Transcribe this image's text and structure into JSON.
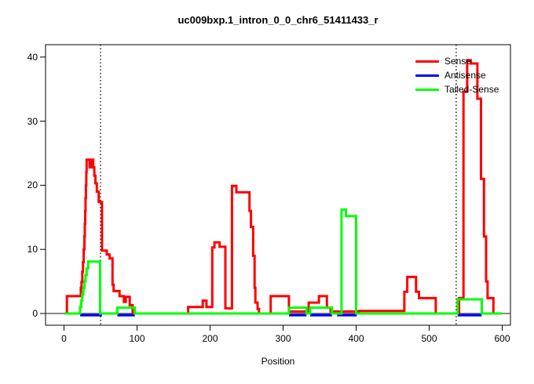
{
  "chart_data": {
    "type": "line",
    "title": "uc009bxp.1_intron_0_0_chr6_51411433_r",
    "xlabel": "Position",
    "ylabel": "",
    "xlim": [
      0,
      600
    ],
    "ylim": [
      0,
      40
    ],
    "x_ticks": [
      0,
      100,
      200,
      300,
      400,
      500,
      600
    ],
    "y_ticks": [
      0,
      10,
      20,
      30,
      40
    ],
    "grid": false,
    "step_interpolation": true,
    "dotted_vlines": [
      50,
      537
    ],
    "axis_color": "#000000",
    "zero_line_color": "#444444",
    "legend_position": "top-right",
    "legend": [
      {
        "label": "Sense",
        "color": "#ff0000"
      },
      {
        "label": "Antisense",
        "color": "#0000ff"
      },
      {
        "label": "Tailed-Sense",
        "color": "#00ff00"
      }
    ],
    "series": [
      {
        "name": "Sense",
        "color": "#ff0000",
        "points": [
          [
            0,
            0
          ],
          [
            4,
            2.7
          ],
          [
            23,
            4
          ],
          [
            24,
            4.9
          ],
          [
            25,
            6.5
          ],
          [
            26,
            8
          ],
          [
            27,
            10
          ],
          [
            28,
            12
          ],
          [
            28.5,
            14
          ],
          [
            29,
            16
          ],
          [
            29.5,
            18
          ],
          [
            30,
            20
          ],
          [
            30.5,
            22
          ],
          [
            31,
            24
          ],
          [
            35,
            22.8
          ],
          [
            38,
            24
          ],
          [
            40,
            22.8
          ],
          [
            41.5,
            21.5
          ],
          [
            43,
            20.3
          ],
          [
            45,
            19
          ],
          [
            47.5,
            17.4
          ],
          [
            52,
            9.8
          ],
          [
            58.5,
            9.2
          ],
          [
            62.5,
            8.6
          ],
          [
            66.5,
            4.5
          ],
          [
            68,
            3.5
          ],
          [
            76,
            2.7
          ],
          [
            82,
            1.8
          ],
          [
            84.5,
            2.6
          ],
          [
            90,
            1.3
          ],
          [
            94,
            0
          ],
          [
            170,
            1
          ],
          [
            190,
            2
          ],
          [
            195,
            1
          ],
          [
            203,
            10.3
          ],
          [
            206,
            11.1
          ],
          [
            213,
            10.4
          ],
          [
            221,
            0.8
          ],
          [
            230,
            19.9
          ],
          [
            236,
            18.9
          ],
          [
            254,
            16
          ],
          [
            256,
            13.5
          ],
          [
            259,
            9
          ],
          [
            261,
            4
          ],
          [
            262,
            1.7
          ],
          [
            265,
            0.7
          ],
          [
            267,
            0
          ],
          [
            283,
            2.7
          ],
          [
            308,
            0.3
          ],
          [
            335,
            1.7
          ],
          [
            349,
            2.7
          ],
          [
            360,
            0.9
          ],
          [
            365,
            0.3
          ],
          [
            404,
            0.4
          ],
          [
            466,
            3.4
          ],
          [
            470,
            5.7
          ],
          [
            482,
            3.4
          ],
          [
            486,
            2.4
          ],
          [
            509,
            0
          ],
          [
            541,
            2.4
          ],
          [
            547,
            34.6
          ],
          [
            552,
            39.5
          ],
          [
            557,
            39
          ],
          [
            566,
            33.5
          ],
          [
            571,
            21
          ],
          [
            575,
            12
          ],
          [
            578,
            5
          ],
          [
            580,
            2.4
          ],
          [
            588,
            0
          ],
          [
            600,
            0
          ]
        ]
      },
      {
        "name": "Antisense",
        "color": "#0000ff",
        "points": [
          [
            0,
            0
          ],
          [
            600,
            0
          ]
        ],
        "visible_segments": [
          [
            22,
            52
          ],
          [
            73,
            97
          ],
          [
            308,
            332
          ],
          [
            337,
            367
          ],
          [
            374,
            401
          ],
          [
            539,
            572
          ]
        ]
      },
      {
        "name": "Tailed-Sense",
        "color": "#00ff00",
        "points": [
          [
            0,
            0
          ],
          [
            22,
            1
          ],
          [
            23.5,
            2
          ],
          [
            25,
            3
          ],
          [
            26.5,
            4
          ],
          [
            28,
            5
          ],
          [
            29.5,
            6
          ],
          [
            31,
            7
          ],
          [
            33,
            8.1
          ],
          [
            49.5,
            0
          ],
          [
            73,
            0.9
          ],
          [
            97,
            0
          ],
          [
            308,
            0.9
          ],
          [
            332,
            0
          ],
          [
            337,
            0.9
          ],
          [
            367,
            0
          ],
          [
            380,
            16.2
          ],
          [
            386,
            15.2
          ],
          [
            400,
            0
          ],
          [
            539,
            2.2
          ],
          [
            572,
            0
          ],
          [
            600,
            0
          ]
        ]
      }
    ]
  }
}
